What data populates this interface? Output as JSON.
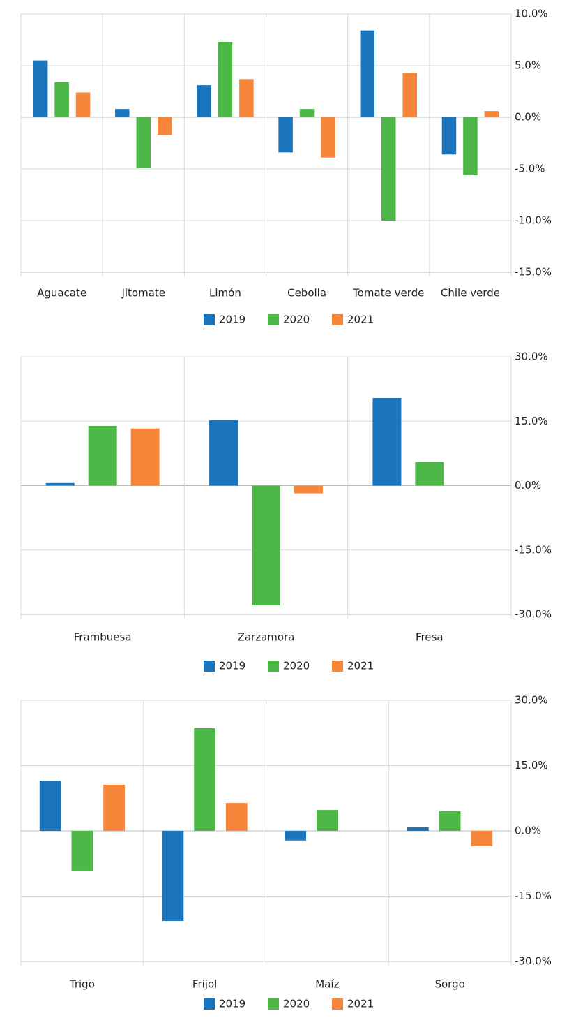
{
  "chart_data": [
    {
      "type": "bar",
      "categories": [
        "Aguacate",
        "Jitomate",
        "Limón",
        "Cebolla",
        "Tomate verde",
        "Chile verde"
      ],
      "series": [
        {
          "name": "2019",
          "color": "#1b75bc",
          "values": [
            5.5,
            0.8,
            3.1,
            -3.4,
            8.4,
            -3.6
          ]
        },
        {
          "name": "2020",
          "color": "#4db848",
          "values": [
            3.4,
            -4.9,
            7.3,
            0.8,
            -10.0,
            -5.6
          ]
        },
        {
          "name": "2021",
          "color": "#f6863a",
          "values": [
            2.4,
            -1.7,
            3.7,
            -3.9,
            4.3,
            0.6
          ]
        }
      ],
      "ylim": [
        -15,
        10
      ],
      "yticks": [
        {
          "value": -15,
          "label": "-15.0%"
        },
        {
          "value": -10,
          "label": "-10.0%"
        },
        {
          "value": -5,
          "label": "-5.0%"
        },
        {
          "value": 0,
          "label": "0.0%"
        },
        {
          "value": 5,
          "label": "5.0%"
        },
        {
          "value": 10,
          "label": "10.0%"
        }
      ],
      "grid": true,
      "legend": "bottom"
    },
    {
      "type": "bar",
      "categories": [
        "Frambuesa",
        "Zarzamora",
        "Fresa"
      ],
      "series": [
        {
          "name": "2019",
          "color": "#1b75bc",
          "values": [
            0.6,
            15.2,
            20.4
          ]
        },
        {
          "name": "2020",
          "color": "#4db848",
          "values": [
            13.9,
            -27.9,
            5.5
          ]
        },
        {
          "name": "2021",
          "color": "#f6863a",
          "values": [
            13.3,
            -1.8,
            null
          ]
        }
      ],
      "ylim": [
        -30,
        30
      ],
      "yticks": [
        {
          "value": -30,
          "label": "-30.0%"
        },
        {
          "value": -15,
          "label": "-15.0%"
        },
        {
          "value": 0,
          "label": "0.0%"
        },
        {
          "value": 15,
          "label": "15.0%"
        },
        {
          "value": 30,
          "label": "30.0%"
        }
      ],
      "grid": true,
      "legend": "bottom"
    },
    {
      "type": "bar",
      "categories": [
        "Trigo",
        "Frijol",
        "Maíz",
        "Sorgo"
      ],
      "series": [
        {
          "name": "2019",
          "color": "#1b75bc",
          "values": [
            11.5,
            -20.7,
            -2.2,
            0.8
          ]
        },
        {
          "name": "2020",
          "color": "#4db848",
          "values": [
            -9.3,
            23.6,
            4.8,
            4.5
          ]
        },
        {
          "name": "2021",
          "color": "#f6863a",
          "values": [
            10.6,
            6.4,
            null,
            -3.5
          ]
        }
      ],
      "ylim": [
        -30,
        30
      ],
      "yticks": [
        {
          "value": -30,
          "label": "-30.0%"
        },
        {
          "value": -15,
          "label": "-15.0%"
        },
        {
          "value": 0,
          "label": "0.0%"
        },
        {
          "value": 15,
          "label": "15.0%"
        },
        {
          "value": 30,
          "label": "30.0%"
        }
      ],
      "grid": true,
      "legend": "bottom"
    }
  ]
}
